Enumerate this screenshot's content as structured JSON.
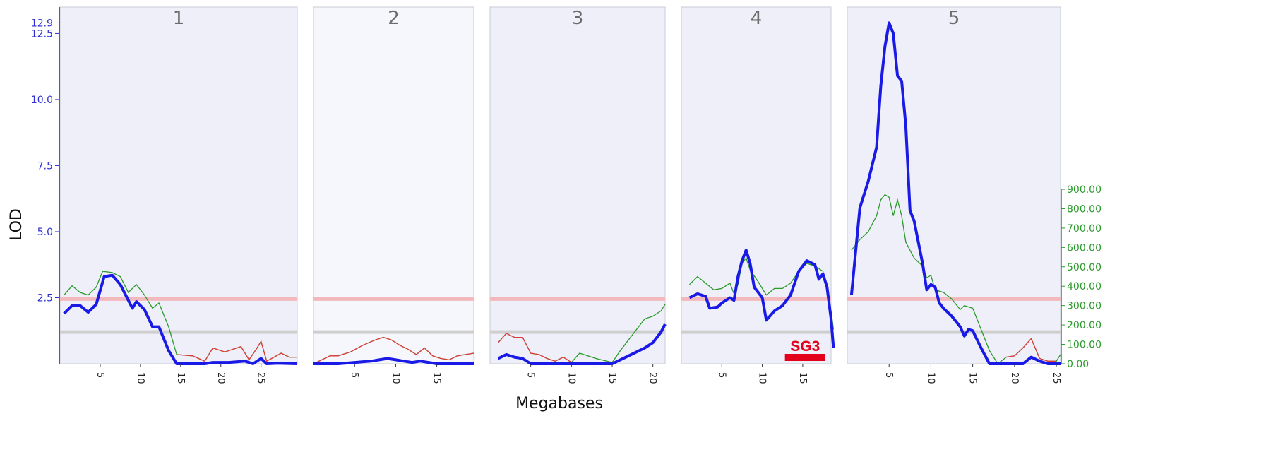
{
  "chart_data": {
    "type": "line",
    "xlabel": "Megabases",
    "ylabel": "LOD",
    "ylim": [
      0,
      13.5
    ],
    "y_ticks": [
      "2.5",
      "5.0",
      "7.5",
      "10.0",
      "12.5",
      "12.9"
    ],
    "y2_lim": [
      0,
      900
    ],
    "y2_ticks": [
      "0.00",
      "100.00",
      "200.00",
      "300.00",
      "400.00",
      "500.00",
      "600.00",
      "700.00",
      "800.00",
      "900.00"
    ],
    "thresholds": {
      "suggestive": 1.2,
      "significant": 2.45
    },
    "colors": {
      "lod": "#1a1ae6",
      "additive": "#2a9a2a",
      "other": "#e03a3a",
      "significant": "#f2b8bc",
      "suggestive": "#cfcfcf",
      "panel_shaded": "#eeeff8",
      "panel_light": "#f6f7fc",
      "sg3": "#e3001b"
    },
    "chromosomes": [
      {
        "label": "1",
        "max_mb": 29.5,
        "ticks": [
          5,
          10,
          15,
          20,
          25
        ],
        "lod": [
          [
            0.5,
            1.9
          ],
          [
            1.5,
            2.2
          ],
          [
            2.5,
            2.2
          ],
          [
            3.5,
            1.95
          ],
          [
            4.5,
            2.25
          ],
          [
            5.5,
            3.3
          ],
          [
            6.5,
            3.35
          ],
          [
            7.5,
            3.0
          ],
          [
            8.5,
            2.4
          ],
          [
            9,
            2.1
          ],
          [
            9.5,
            2.35
          ],
          [
            10.5,
            2.05
          ],
          [
            11.5,
            1.4
          ],
          [
            12.3,
            1.4
          ],
          [
            13.5,
            0.5
          ],
          [
            14.5,
            0
          ],
          [
            18,
            0
          ],
          [
            19,
            0.05
          ],
          [
            21,
            0.05
          ],
          [
            23,
            0.1
          ],
          [
            24,
            0
          ],
          [
            25,
            0.2
          ],
          [
            25.7,
            0
          ],
          [
            27,
            0.02
          ],
          [
            29.5,
            0
          ]
        ],
        "additive": [
          [
            0.5,
            2.6
          ],
          [
            1.5,
            2.95
          ],
          [
            2.5,
            2.7
          ],
          [
            3.5,
            2.6
          ],
          [
            4.5,
            2.9
          ],
          [
            5.3,
            3.5
          ],
          [
            6.5,
            3.45
          ],
          [
            7.5,
            3.3
          ],
          [
            8.5,
            2.7
          ],
          [
            9.5,
            3.0
          ],
          [
            10.5,
            2.6
          ],
          [
            11.5,
            2.1
          ],
          [
            12.3,
            2.3
          ],
          [
            13.5,
            1.4
          ],
          [
            14.5,
            0.35
          ],
          [
            16.5,
            0.3
          ],
          [
            18,
            0.1
          ],
          [
            19,
            0.6
          ],
          [
            20.5,
            0.45
          ],
          [
            22.5,
            0.65
          ],
          [
            23.5,
            0.15
          ],
          [
            24.5,
            0.6
          ],
          [
            25,
            0.85
          ],
          [
            25.7,
            0.1
          ],
          [
            27.5,
            0.4
          ],
          [
            28.5,
            0.25
          ],
          [
            29.5,
            0.25
          ]
        ],
        "other": [
          [
            14.5,
            0.35
          ],
          [
            16.5,
            0.3
          ],
          [
            18,
            0.1
          ],
          [
            19,
            0.6
          ],
          [
            20.5,
            0.45
          ],
          [
            22.5,
            0.65
          ],
          [
            23.5,
            0.15
          ],
          [
            24.5,
            0.6
          ],
          [
            25,
            0.85
          ],
          [
            25.7,
            0.1
          ],
          [
            27.5,
            0.4
          ],
          [
            28.5,
            0.25
          ],
          [
            29.5,
            0.25
          ]
        ]
      },
      {
        "label": "2",
        "max_mb": 19.5,
        "ticks": [
          5,
          10,
          15
        ],
        "lod": [
          [
            0,
            0
          ],
          [
            3,
            0
          ],
          [
            5,
            0.05
          ],
          [
            7,
            0.1
          ],
          [
            8,
            0.15
          ],
          [
            9,
            0.2
          ],
          [
            10,
            0.15
          ],
          [
            11,
            0.1
          ],
          [
            12,
            0.05
          ],
          [
            13,
            0.1
          ],
          [
            14,
            0.05
          ],
          [
            15,
            0
          ],
          [
            19.5,
            0
          ]
        ],
        "additive": [
          [
            0,
            0
          ],
          [
            1,
            0.15
          ],
          [
            2,
            0.3
          ],
          [
            3,
            0.3
          ],
          [
            4.5,
            0.45
          ],
          [
            6,
            0.7
          ],
          [
            7.5,
            0.9
          ],
          [
            8.5,
            1.0
          ],
          [
            9.5,
            0.9
          ],
          [
            10.5,
            0.7
          ],
          [
            11.5,
            0.55
          ],
          [
            12.5,
            0.35
          ],
          [
            13.5,
            0.6
          ],
          [
            14.5,
            0.3
          ],
          [
            15.5,
            0.2
          ],
          [
            16.5,
            0.15
          ],
          [
            17.5,
            0.3
          ],
          [
            18.5,
            0.35
          ],
          [
            19.5,
            0.4
          ]
        ],
        "other": [
          [
            0,
            0
          ],
          [
            1,
            0.15
          ],
          [
            2,
            0.3
          ],
          [
            3,
            0.3
          ],
          [
            4.5,
            0.45
          ],
          [
            6,
            0.7
          ],
          [
            7.5,
            0.9
          ],
          [
            8.5,
            1.0
          ],
          [
            9.5,
            0.9
          ],
          [
            10.5,
            0.7
          ],
          [
            11.5,
            0.55
          ],
          [
            12.5,
            0.35
          ],
          [
            13.5,
            0.6
          ],
          [
            14.5,
            0.3
          ],
          [
            15.5,
            0.2
          ],
          [
            16.5,
            0.15
          ],
          [
            17.5,
            0.3
          ],
          [
            18.5,
            0.35
          ],
          [
            19.5,
            0.4
          ]
        ]
      },
      {
        "label": "3",
        "max_mb": 21.5,
        "ticks": [
          5,
          10,
          15,
          20
        ],
        "lod": [
          [
            1,
            0.2
          ],
          [
            2,
            0.35
          ],
          [
            3,
            0.25
          ],
          [
            4,
            0.2
          ],
          [
            5,
            0
          ],
          [
            8,
            0
          ],
          [
            10,
            0
          ],
          [
            12,
            0
          ],
          [
            15,
            0
          ],
          [
            17,
            0.3
          ],
          [
            19,
            0.6
          ],
          [
            20,
            0.8
          ],
          [
            21,
            1.2
          ],
          [
            21.5,
            1.5
          ]
        ],
        "additive": [
          [
            1,
            0.8
          ],
          [
            2,
            1.15
          ],
          [
            3,
            1.0
          ],
          [
            4,
            1.0
          ],
          [
            5,
            0.4
          ],
          [
            6,
            0.35
          ],
          [
            7,
            0.2
          ],
          [
            8,
            0.1
          ],
          [
            9,
            0.25
          ],
          [
            10,
            0.05
          ],
          [
            11,
            0.4
          ],
          [
            12,
            0.3
          ],
          [
            13,
            0.2
          ],
          [
            15,
            0.05
          ],
          [
            16,
            0.5
          ],
          [
            17,
            0.9
          ],
          [
            18,
            1.3
          ],
          [
            19,
            1.7
          ],
          [
            20,
            1.8
          ],
          [
            21,
            2.0
          ],
          [
            21.5,
            2.25
          ]
        ],
        "other": [
          [
            1,
            0.8
          ],
          [
            2,
            1.15
          ],
          [
            3,
            1.0
          ],
          [
            4,
            1.0
          ],
          [
            5,
            0.4
          ],
          [
            6,
            0.35
          ],
          [
            7,
            0.2
          ],
          [
            8,
            0.1
          ],
          [
            9,
            0.25
          ],
          [
            10,
            0.05
          ]
        ]
      },
      {
        "label": "4",
        "max_mb": 18.5,
        "ticks": [
          5,
          10,
          15
        ],
        "lod": [
          [
            1,
            2.5
          ],
          [
            2,
            2.65
          ],
          [
            3,
            2.55
          ],
          [
            3.5,
            2.1
          ],
          [
            4.5,
            2.15
          ],
          [
            5,
            2.3
          ],
          [
            6,
            2.5
          ],
          [
            6.5,
            2.4
          ],
          [
            7,
            3.3
          ],
          [
            7.5,
            3.9
          ],
          [
            8,
            4.3
          ],
          [
            8.5,
            3.8
          ],
          [
            9,
            2.9
          ],
          [
            10,
            2.5
          ],
          [
            10.5,
            1.65
          ],
          [
            11.5,
            2.0
          ],
          [
            12.5,
            2.2
          ],
          [
            13.5,
            2.6
          ],
          [
            14.5,
            3.5
          ],
          [
            15.5,
            3.9
          ],
          [
            16.5,
            3.75
          ],
          [
            17,
            3.2
          ],
          [
            17.5,
            3.4
          ],
          [
            18,
            2.9
          ],
          [
            18.5,
            1.7
          ],
          [
            18.8,
            0.6
          ]
        ],
        "additive": [
          [
            1,
            3.0
          ],
          [
            2,
            3.3
          ],
          [
            3,
            3.05
          ],
          [
            4,
            2.8
          ],
          [
            5,
            2.85
          ],
          [
            6,
            3.05
          ],
          [
            6.5,
            2.65
          ],
          [
            7,
            3.0
          ],
          [
            7.5,
            3.8
          ],
          [
            8,
            4.0
          ],
          [
            8.5,
            3.55
          ],
          [
            9.5,
            3.1
          ],
          [
            10.5,
            2.6
          ],
          [
            11.5,
            2.85
          ],
          [
            12.5,
            2.85
          ],
          [
            13.5,
            3.05
          ],
          [
            14.5,
            3.5
          ],
          [
            15.5,
            3.8
          ],
          [
            16.5,
            3.7
          ],
          [
            17.5,
            3.5
          ],
          [
            18.5,
            2.0
          ],
          [
            18.8,
            1.3
          ]
        ],
        "other": [],
        "bar": {
          "label": "SG3",
          "start": 12.8,
          "end": 17.8
        }
      },
      {
        "label": "5",
        "max_mb": 25.5,
        "ticks": [
          5,
          10,
          15,
          20,
          25
        ],
        "lod": [
          [
            0.5,
            2.6
          ],
          [
            1.5,
            5.9
          ],
          [
            2.5,
            6.9
          ],
          [
            3.5,
            8.2
          ],
          [
            4,
            10.5
          ],
          [
            4.5,
            12.0
          ],
          [
            5,
            12.9
          ],
          [
            5.5,
            12.5
          ],
          [
            6,
            10.9
          ],
          [
            6.5,
            10.7
          ],
          [
            7,
            9.0
          ],
          [
            7.5,
            5.8
          ],
          [
            8,
            5.4
          ],
          [
            9,
            3.8
          ],
          [
            9.5,
            2.8
          ],
          [
            10,
            3.0
          ],
          [
            10.5,
            2.9
          ],
          [
            11,
            2.3
          ],
          [
            11.5,
            2.1
          ],
          [
            12.5,
            1.8
          ],
          [
            13.5,
            1.4
          ],
          [
            14,
            1.05
          ],
          [
            14.5,
            1.3
          ],
          [
            15,
            1.25
          ],
          [
            16,
            0.6
          ],
          [
            17,
            0
          ],
          [
            19,
            0
          ],
          [
            21,
            0
          ],
          [
            22,
            0.25
          ],
          [
            23,
            0.1
          ],
          [
            24,
            0
          ],
          [
            25.5,
            0
          ]
        ],
        "additive": [
          [
            0.5,
            4.3
          ],
          [
            1.5,
            4.7
          ],
          [
            2.5,
            5.0
          ],
          [
            3.5,
            5.6
          ],
          [
            4,
            6.2
          ],
          [
            4.5,
            6.4
          ],
          [
            5,
            6.3
          ],
          [
            5.5,
            5.6
          ],
          [
            6,
            6.2
          ],
          [
            6.5,
            5.6
          ],
          [
            7,
            4.6
          ],
          [
            8,
            4.0
          ],
          [
            9,
            3.7
          ],
          [
            9.5,
            3.25
          ],
          [
            10,
            3.35
          ],
          [
            10.5,
            2.8
          ],
          [
            11.5,
            2.7
          ],
          [
            12.5,
            2.45
          ],
          [
            13.5,
            2.05
          ],
          [
            14,
            2.2
          ],
          [
            15,
            2.1
          ],
          [
            16,
            1.3
          ],
          [
            17,
            0.5
          ],
          [
            18,
            0
          ],
          [
            19,
            0.25
          ],
          [
            20,
            0.3
          ],
          [
            21,
            0.6
          ],
          [
            22,
            0.95
          ],
          [
            23,
            0.2
          ],
          [
            24,
            0.1
          ],
          [
            25,
            0.1
          ],
          [
            25.5,
            0.35
          ]
        ],
        "other": [
          [
            19,
            0.25
          ],
          [
            20,
            0.3
          ],
          [
            21,
            0.6
          ],
          [
            22,
            0.95
          ],
          [
            23,
            0.2
          ],
          [
            24,
            0.1
          ],
          [
            25,
            0.1
          ]
        ]
      }
    ]
  }
}
